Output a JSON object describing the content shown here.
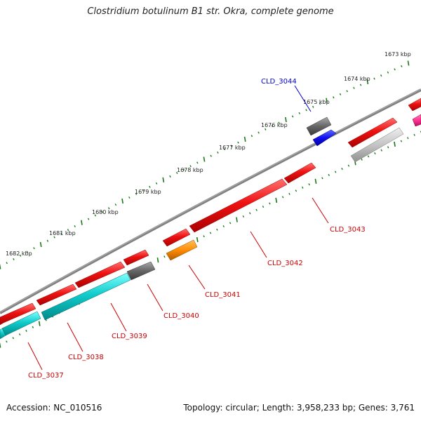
{
  "title": "Clostridium botulinum B1 str. Okra, complete genome",
  "footer": {
    "accession": "Accession: NC_010516",
    "summary": "Topology: circular; Length: 3,958,233 bp; Genes: 3,761"
  },
  "colors": {
    "backbone": "#808080",
    "tick": "#1a7a1a",
    "forward_gene": "#ee1111",
    "reverse_gene": "#11cccc",
    "label_forward": "#cc0000",
    "label_highlight": "#0000cc"
  },
  "ticks": [
    {
      "label": "1673 kbp"
    },
    {
      "label": "1674 kbp"
    },
    {
      "label": "1675 kbp"
    },
    {
      "label": "1676 kbp"
    },
    {
      "label": "1677 kbp"
    },
    {
      "label": "1678 kbp"
    },
    {
      "label": "1679 kbp"
    },
    {
      "label": "1680 kbp"
    },
    {
      "label": "1681 kbp"
    },
    {
      "label": "1682 kbp"
    }
  ],
  "gene_labels": [
    {
      "text": "CLD_3044",
      "color": "#0000cc"
    },
    {
      "text": "CLD_3043",
      "color": "#cc0000"
    },
    {
      "text": "CLD_3042",
      "color": "#cc0000"
    },
    {
      "text": "CLD_3041",
      "color": "#cc0000"
    },
    {
      "text": "CLD_3040",
      "color": "#cc0000"
    },
    {
      "text": "CLD_3039",
      "color": "#cc0000"
    },
    {
      "text": "CLD_3038",
      "color": "#cc0000"
    },
    {
      "text": "CLD_3037",
      "color": "#cc0000"
    }
  ]
}
